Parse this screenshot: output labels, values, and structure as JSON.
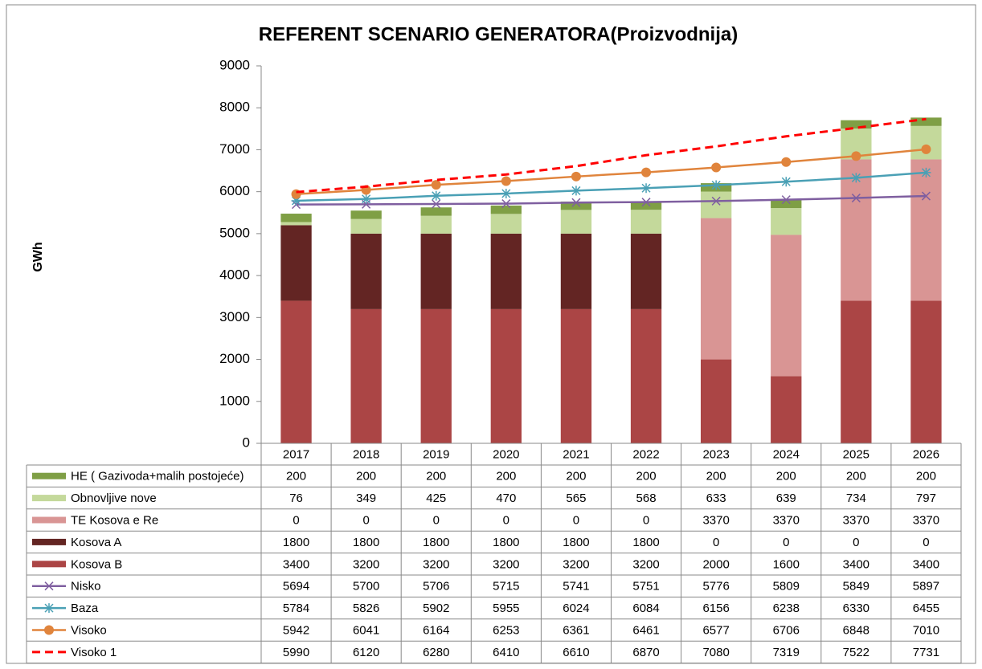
{
  "chart_data": {
    "type": "bar",
    "stacked": true,
    "title": "REFERENT SCENARIO GENERATORA(Proizvodnija)",
    "y_label": "GWh",
    "categories": [
      "2017",
      "2018",
      "2019",
      "2020",
      "2021",
      "2022",
      "2023",
      "2024",
      "2025",
      "2026"
    ],
    "ylim": [
      0,
      9000
    ],
    "yticks": [
      0,
      1000,
      2000,
      3000,
      4000,
      5000,
      6000,
      7000,
      8000,
      9000
    ],
    "grid": false,
    "series": [
      {
        "name": "HE ( Gazivoda+malih postojeće)",
        "type": "bar",
        "color": "#7f9f45",
        "values": [
          200,
          200,
          200,
          200,
          200,
          200,
          200,
          200,
          200,
          200
        ]
      },
      {
        "name": "Obnovljive nove",
        "type": "bar",
        "color": "#c4d99b",
        "values": [
          76,
          349,
          425,
          470,
          565,
          568,
          633,
          639,
          734,
          797
        ]
      },
      {
        "name": "TE Kosova e Re",
        "type": "bar",
        "color": "#d99594",
        "values": [
          0,
          0,
          0,
          0,
          0,
          0,
          3370,
          3370,
          3370,
          3370
        ]
      },
      {
        "name": "Kosova A",
        "type": "bar",
        "color": "#632523",
        "values": [
          1800,
          1800,
          1800,
          1800,
          1800,
          1800,
          0,
          0,
          0,
          0
        ]
      },
      {
        "name": "Kosova B",
        "type": "bar",
        "color": "#ab4545",
        "values": [
          3400,
          3200,
          3200,
          3200,
          3200,
          3200,
          2000,
          1600,
          3400,
          3400
        ]
      },
      {
        "name": "Nisko",
        "type": "line",
        "marker": "x",
        "color": "#7f5fa0",
        "values": [
          5694,
          5700,
          5706,
          5715,
          5741,
          5751,
          5776,
          5809,
          5849,
          5897
        ]
      },
      {
        "name": "Baza",
        "type": "line",
        "marker": "star",
        "color": "#4aa0b5",
        "values": [
          5784,
          5826,
          5902,
          5955,
          6024,
          6084,
          6156,
          6238,
          6330,
          6455
        ]
      },
      {
        "name": "Visoko",
        "type": "line",
        "marker": "circle",
        "color": "#e0843c",
        "values": [
          5942,
          6041,
          6164,
          6253,
          6361,
          6461,
          6577,
          6706,
          6848,
          7010
        ]
      },
      {
        "name": "Visoko 1",
        "type": "line",
        "marker": "none",
        "dashed": true,
        "color": "#ff0000",
        "values": [
          5990,
          6120,
          6280,
          6410,
          6610,
          6870,
          7080,
          7319,
          7522,
          7731
        ]
      }
    ]
  }
}
